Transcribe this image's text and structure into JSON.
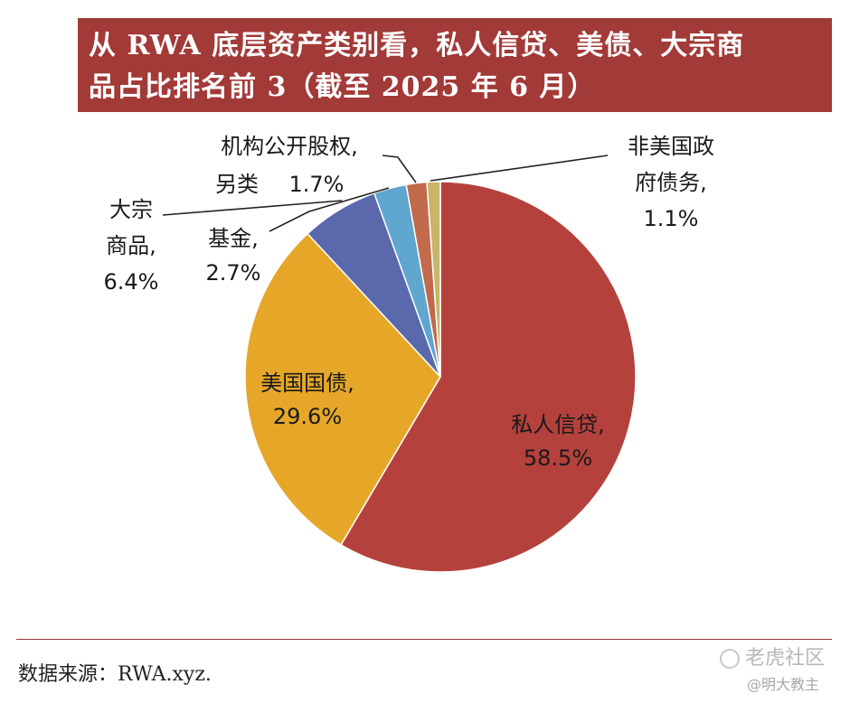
{
  "title": {
    "line1": "从 RWA 底层资产类别看，私人信贷、美债、大宗商",
    "line2": "品占比排名前 3（截至 2025 年 6 月）"
  },
  "source": "数据来源：RWA.xyz.",
  "watermark": {
    "brand": "老虎社区",
    "author": "@明大教主"
  },
  "chart_data": {
    "type": "pie",
    "unit": "%",
    "slices": [
      {
        "label_lines": [
          "私人信贷,",
          "58.5%"
        ],
        "value": 58.5,
        "color": "#b5413c",
        "label_placement": "inside"
      },
      {
        "label_lines": [
          "美国国债,",
          "29.6%"
        ],
        "value": 29.6,
        "color": "#e6a729",
        "label_placement": "inside"
      },
      {
        "label_lines": [
          "大宗",
          "商品,",
          "6.4%"
        ],
        "value": 6.4,
        "color": "#5a68ac",
        "label_placement": "outside-left"
      },
      {
        "label_lines": [
          "基金,",
          "2.7%"
        ],
        "value": 2.7,
        "color": "#5fa7ce",
        "label_placement": "outside-left"
      },
      {
        "label_lines": [
          "机构公开股权,",
          "另类",
          "1.7%"
        ],
        "value": 1.7,
        "color": "#c16a4c",
        "label_placement": "outside-top"
      },
      {
        "label_lines": [
          "非美国政",
          "府债务,",
          "1.1%"
        ],
        "value": 1.1,
        "color": "#c9b468",
        "label_placement": "outside-right"
      }
    ]
  }
}
